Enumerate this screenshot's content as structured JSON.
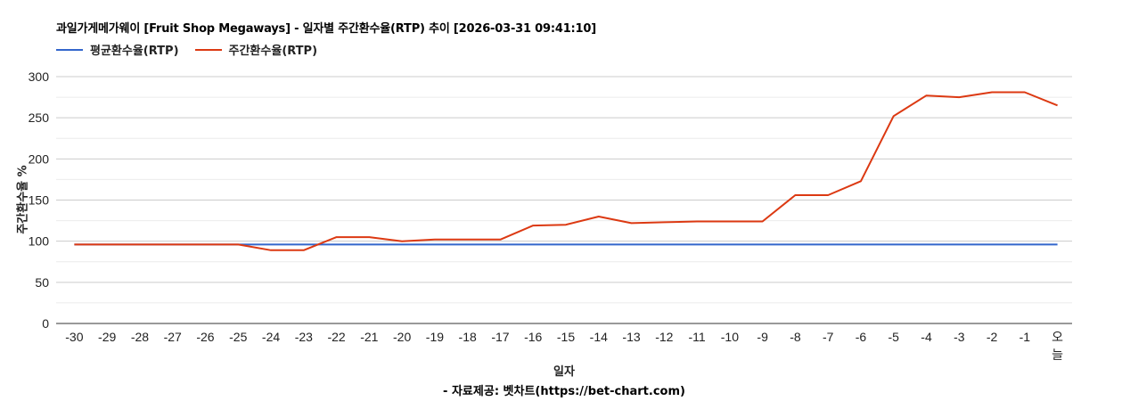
{
  "title": "과일가게메가웨이 [Fruit Shop Megaways] - 일자별 주간환수율(RTP) 추이 [2026-03-31 09:41:10]",
  "legend": [
    {
      "label": "평균환수율(RTP)",
      "color": "#3366cc"
    },
    {
      "label": "주간환수율(RTP)",
      "color": "#dc3912"
    }
  ],
  "axis": {
    "ylabel": "주간환수율 %",
    "xlabel": "일자"
  },
  "source": "- 자료제공: 벳차트(https://bet-chart.com)",
  "chart_data": {
    "type": "line",
    "title": "과일가게메가웨이 [Fruit Shop Megaways] - 일자별 주간환수율(RTP) 추이 [2026-03-31 09:41:10]",
    "xlabel": "일자",
    "ylabel": "주간환수율 %",
    "ylim": [
      0,
      300
    ],
    "yticks": [
      0,
      50,
      100,
      150,
      200,
      250,
      300
    ],
    "grid": true,
    "legend_position": "top",
    "categories": [
      "-30",
      "-29",
      "-28",
      "-27",
      "-26",
      "-25",
      "-24",
      "-23",
      "-22",
      "-21",
      "-20",
      "-19",
      "-18",
      "-17",
      "-16",
      "-15",
      "-14",
      "-13",
      "-12",
      "-11",
      "-10",
      "-9",
      "-8",
      "-7",
      "-6",
      "-5",
      "-4",
      "-3",
      "-2",
      "-1",
      "오늘"
    ],
    "series": [
      {
        "name": "평균환수율(RTP)",
        "color": "#3366cc",
        "values": [
          96,
          96,
          96,
          96,
          96,
          96,
          96,
          96,
          96,
          96,
          96,
          96,
          96,
          96,
          96,
          96,
          96,
          96,
          96,
          96,
          96,
          96,
          96,
          96,
          96,
          96,
          96,
          96,
          96,
          96,
          96
        ]
      },
      {
        "name": "주간환수율(RTP)",
        "color": "#dc3912",
        "values": [
          96,
          96,
          96,
          96,
          96,
          96,
          89,
          89,
          105,
          105,
          100,
          102,
          102,
          102,
          119,
          120,
          130,
          122,
          123,
          124,
          124,
          124,
          156,
          156,
          173,
          252,
          277,
          275,
          281,
          281,
          265
        ]
      }
    ]
  }
}
